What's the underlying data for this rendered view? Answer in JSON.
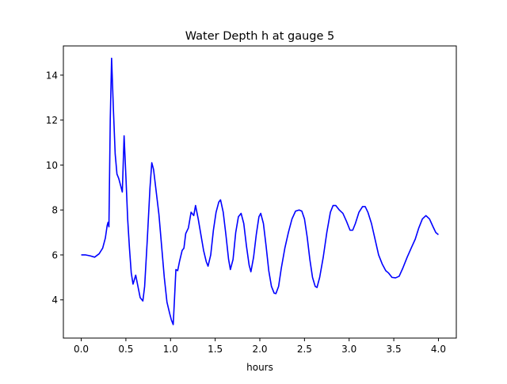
{
  "chart_data": {
    "type": "line",
    "title": "Water Depth h at gauge 5",
    "xlabel": "hours",
    "ylabel": "",
    "xlim": [
      -0.2,
      4.2
    ],
    "ylim": [
      2.3,
      15.3
    ],
    "xticks": [
      0.0,
      0.5,
      1.0,
      1.5,
      2.0,
      2.5,
      3.0,
      3.5,
      4.0
    ],
    "xtick_labels": [
      "0.0",
      "0.5",
      "1.0",
      "1.5",
      "2.0",
      "2.5",
      "3.0",
      "3.5",
      "4.0"
    ],
    "yticks": [
      4,
      6,
      8,
      10,
      12,
      14
    ],
    "ytick_labels": [
      "4",
      "6",
      "8",
      "10",
      "12",
      "14"
    ],
    "grid": false,
    "series": [
      {
        "color": "#0000ff",
        "points": [
          [
            0.0,
            6.0
          ],
          [
            0.05,
            6.0
          ],
          [
            0.1,
            5.96
          ],
          [
            0.15,
            5.9
          ],
          [
            0.2,
            6.05
          ],
          [
            0.24,
            6.3
          ],
          [
            0.27,
            6.75
          ],
          [
            0.29,
            7.3
          ],
          [
            0.3,
            7.45
          ],
          [
            0.31,
            7.25
          ],
          [
            0.325,
            12.0
          ],
          [
            0.34,
            14.75
          ],
          [
            0.36,
            12.5
          ],
          [
            0.38,
            10.5
          ],
          [
            0.4,
            9.6
          ],
          [
            0.42,
            9.4
          ],
          [
            0.44,
            9.1
          ],
          [
            0.46,
            8.8
          ],
          [
            0.48,
            11.3
          ],
          [
            0.5,
            9.5
          ],
          [
            0.52,
            7.6
          ],
          [
            0.54,
            6.3
          ],
          [
            0.56,
            5.2
          ],
          [
            0.58,
            4.7
          ],
          [
            0.61,
            5.1
          ],
          [
            0.63,
            4.7
          ],
          [
            0.66,
            4.1
          ],
          [
            0.69,
            3.95
          ],
          [
            0.71,
            4.6
          ],
          [
            0.74,
            6.7
          ],
          [
            0.77,
            9.0
          ],
          [
            0.79,
            10.1
          ],
          [
            0.81,
            9.8
          ],
          [
            0.84,
            8.8
          ],
          [
            0.87,
            7.8
          ],
          [
            0.9,
            6.4
          ],
          [
            0.93,
            5.0
          ],
          [
            0.96,
            3.9
          ],
          [
            0.99,
            3.4
          ],
          [
            1.01,
            3.1
          ],
          [
            1.03,
            2.9
          ],
          [
            1.045,
            4.1
          ],
          [
            1.06,
            5.35
          ],
          [
            1.08,
            5.3
          ],
          [
            1.1,
            5.7
          ],
          [
            1.13,
            6.2
          ],
          [
            1.15,
            6.3
          ],
          [
            1.17,
            6.95
          ],
          [
            1.2,
            7.2
          ],
          [
            1.23,
            7.9
          ],
          [
            1.26,
            7.75
          ],
          [
            1.28,
            8.2
          ],
          [
            1.31,
            7.6
          ],
          [
            1.34,
            6.9
          ],
          [
            1.37,
            6.2
          ],
          [
            1.4,
            5.7
          ],
          [
            1.42,
            5.5
          ],
          [
            1.45,
            6.0
          ],
          [
            1.48,
            7.1
          ],
          [
            1.51,
            7.9
          ],
          [
            1.54,
            8.35
          ],
          [
            1.56,
            8.45
          ],
          [
            1.59,
            7.9
          ],
          [
            1.62,
            6.9
          ],
          [
            1.65,
            5.8
          ],
          [
            1.67,
            5.35
          ],
          [
            1.7,
            5.8
          ],
          [
            1.73,
            7.0
          ],
          [
            1.76,
            7.7
          ],
          [
            1.79,
            7.85
          ],
          [
            1.82,
            7.4
          ],
          [
            1.85,
            6.4
          ],
          [
            1.88,
            5.55
          ],
          [
            1.9,
            5.25
          ],
          [
            1.93,
            5.9
          ],
          [
            1.96,
            6.9
          ],
          [
            1.99,
            7.7
          ],
          [
            2.01,
            7.85
          ],
          [
            2.04,
            7.4
          ],
          [
            2.07,
            6.4
          ],
          [
            2.1,
            5.3
          ],
          [
            2.13,
            4.6
          ],
          [
            2.16,
            4.3
          ],
          [
            2.18,
            4.28
          ],
          [
            2.21,
            4.6
          ],
          [
            2.24,
            5.4
          ],
          [
            2.28,
            6.3
          ],
          [
            2.32,
            7.0
          ],
          [
            2.36,
            7.6
          ],
          [
            2.4,
            7.95
          ],
          [
            2.44,
            8.0
          ],
          [
            2.47,
            7.95
          ],
          [
            2.5,
            7.6
          ],
          [
            2.53,
            6.8
          ],
          [
            2.56,
            5.8
          ],
          [
            2.59,
            5.0
          ],
          [
            2.62,
            4.6
          ],
          [
            2.64,
            4.55
          ],
          [
            2.67,
            5.0
          ],
          [
            2.71,
            5.9
          ],
          [
            2.75,
            7.0
          ],
          [
            2.79,
            7.9
          ],
          [
            2.82,
            8.2
          ],
          [
            2.85,
            8.2
          ],
          [
            2.89,
            8.0
          ],
          [
            2.93,
            7.85
          ],
          [
            2.97,
            7.5
          ],
          [
            3.01,
            7.1
          ],
          [
            3.04,
            7.1
          ],
          [
            3.07,
            7.4
          ],
          [
            3.11,
            7.9
          ],
          [
            3.15,
            8.15
          ],
          [
            3.18,
            8.15
          ],
          [
            3.21,
            7.9
          ],
          [
            3.25,
            7.4
          ],
          [
            3.29,
            6.7
          ],
          [
            3.33,
            6.0
          ],
          [
            3.37,
            5.6
          ],
          [
            3.41,
            5.3
          ],
          [
            3.44,
            5.2
          ],
          [
            3.48,
            5.0
          ],
          [
            3.52,
            4.98
          ],
          [
            3.56,
            5.05
          ],
          [
            3.6,
            5.4
          ],
          [
            3.65,
            5.9
          ],
          [
            3.7,
            6.35
          ],
          [
            3.74,
            6.7
          ],
          [
            3.78,
            7.2
          ],
          [
            3.82,
            7.6
          ],
          [
            3.86,
            7.75
          ],
          [
            3.9,
            7.6
          ],
          [
            3.94,
            7.25
          ],
          [
            3.97,
            7.0
          ],
          [
            4.0,
            6.9
          ]
        ]
      }
    ]
  }
}
